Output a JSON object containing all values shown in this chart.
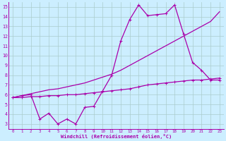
{
  "xlabel": "Windchill (Refroidissement éolien,°C)",
  "bg_color": "#cceeff",
  "grid_color": "#aacccc",
  "line_color": "#aa00aa",
  "xlim": [
    -0.5,
    23.5
  ],
  "ylim": [
    2.5,
    15.5
  ],
  "xticks": [
    0,
    1,
    2,
    3,
    4,
    5,
    6,
    7,
    8,
    9,
    10,
    11,
    12,
    13,
    14,
    15,
    16,
    17,
    18,
    19,
    20,
    21,
    22,
    23
  ],
  "yticks": [
    3,
    4,
    5,
    6,
    7,
    8,
    9,
    10,
    11,
    12,
    13,
    14,
    15
  ],
  "line_top_x": [
    0,
    1,
    2,
    3,
    4,
    5,
    6,
    7,
    8,
    9,
    10,
    11,
    12,
    13,
    14,
    15,
    16,
    17,
    18,
    19,
    20,
    21,
    22,
    23
  ],
  "line_top_y": [
    5.7,
    5.9,
    6.1,
    6.3,
    6.5,
    6.6,
    6.8,
    7.0,
    7.2,
    7.5,
    7.8,
    8.1,
    8.5,
    9.0,
    9.5,
    10.0,
    10.5,
    11.0,
    11.5,
    12.0,
    12.5,
    13.0,
    13.5,
    14.5
  ],
  "line_mid_x": [
    0,
    1,
    2,
    3,
    4,
    5,
    6,
    7,
    8,
    9,
    10,
    11,
    12,
    13,
    14,
    15,
    16,
    17,
    18,
    19,
    20,
    21,
    22,
    23
  ],
  "line_mid_y": [
    5.7,
    5.9,
    6.0,
    3.5,
    4.1,
    3.0,
    3.5,
    3.0,
    4.7,
    4.8,
    6.4,
    8.0,
    11.5,
    13.7,
    15.2,
    14.1,
    14.2,
    14.3,
    15.2,
    12.2,
    9.3,
    8.5,
    7.5,
    7.5
  ],
  "line_bot_x": [
    0,
    1,
    2,
    3,
    4,
    5,
    6,
    7,
    8,
    9,
    10,
    11,
    12,
    13,
    14,
    15,
    16,
    17,
    18,
    19,
    20,
    21,
    22,
    23
  ],
  "line_bot_y": [
    5.7,
    5.7,
    5.8,
    5.8,
    5.9,
    5.9,
    6.0,
    6.0,
    6.1,
    6.2,
    6.3,
    6.4,
    6.5,
    6.6,
    6.8,
    7.0,
    7.1,
    7.2,
    7.3,
    7.4,
    7.5,
    7.5,
    7.6,
    7.7
  ]
}
